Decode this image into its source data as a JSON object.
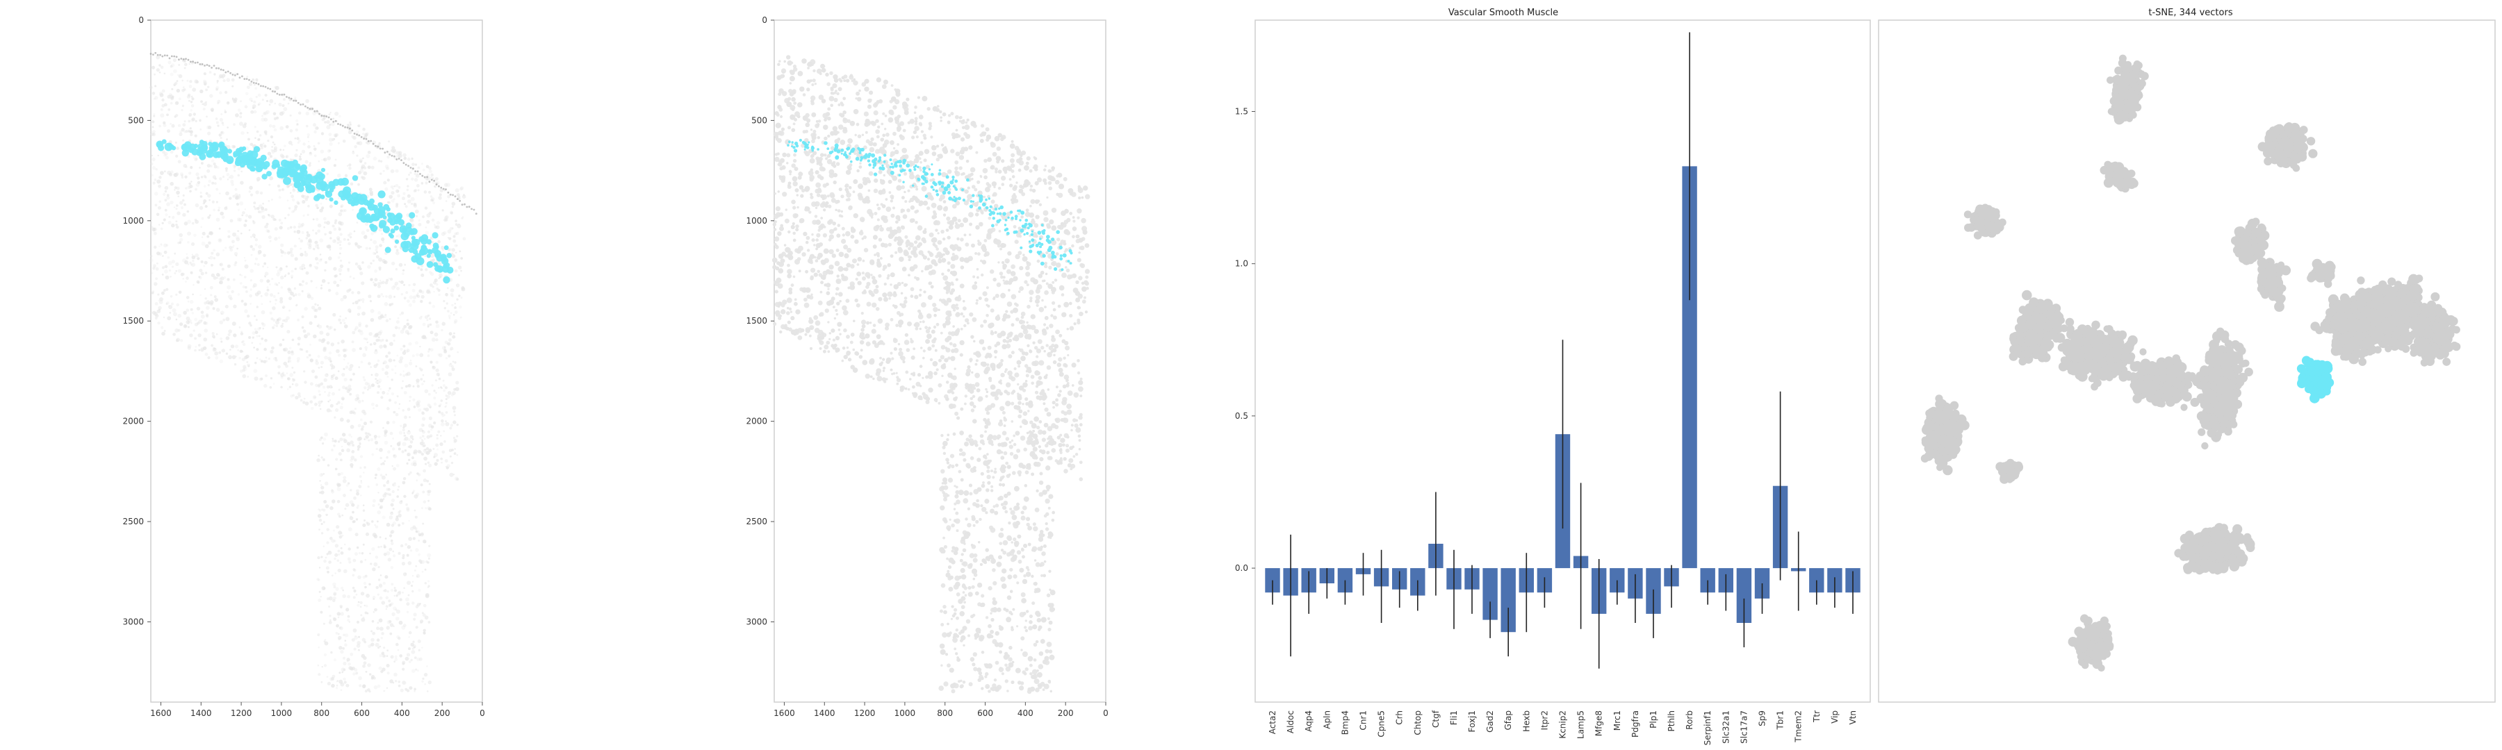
{
  "colors": {
    "highlight": "#6ee7f7",
    "tissue": "#cfcfcf",
    "tissue_light": "#e4e4e4",
    "bar": "#4c72b0",
    "err": "#222222"
  },
  "chart_data": [
    {
      "type": "scatter",
      "panel": "spatial-expression",
      "title": "",
      "x_ticks": [
        1600,
        1400,
        1200,
        1000,
        800,
        600,
        400,
        200,
        0
      ],
      "y_ticks": [
        0,
        500,
        1000,
        1500,
        2000,
        2500,
        3000
      ],
      "xlim": [
        1650,
        0
      ],
      "ylim": [
        3400,
        0
      ]
    },
    {
      "type": "scatter",
      "panel": "spatial-cluster",
      "title": "",
      "x_ticks": [
        1600,
        1400,
        1200,
        1000,
        800,
        600,
        400,
        200,
        0
      ],
      "y_ticks": [
        0,
        500,
        1000,
        1500,
        2000,
        2500,
        3000
      ],
      "xlim": [
        1650,
        0
      ],
      "ylim": [
        3400,
        0
      ]
    },
    {
      "type": "bar",
      "panel": "gene-bars",
      "title": "Vascular Smooth Muscle",
      "categories": [
        "Acta2",
        "Aldoc",
        "Aqp4",
        "Apln",
        "Bmp4",
        "Cnr1",
        "Cpne5",
        "Crh",
        "Chtop",
        "Ctgf",
        "Fli1",
        "Foxj1",
        "Gad2",
        "Gfap",
        "Hexb",
        "Itpr2",
        "Kcnip2",
        "Lamp5",
        "Mfge8",
        "Mrc1",
        "Pdgfra",
        "Plp1",
        "Pthlh",
        "Rorb",
        "Serpinf1",
        "Slc32a1",
        "Slc17a7",
        "Sp9",
        "Tbr1",
        "Tmem2",
        "Ttr",
        "Vip",
        "Vtn"
      ],
      "values": [
        -0.08,
        -0.09,
        -0.08,
        -0.05,
        -0.08,
        -0.02,
        -0.06,
        -0.07,
        -0.09,
        0.08,
        -0.07,
        -0.07,
        -0.17,
        -0.21,
        -0.08,
        -0.08,
        0.44,
        0.04,
        -0.15,
        -0.08,
        -0.1,
        -0.15,
        -0.06,
        1.32,
        -0.08,
        -0.08,
        -0.18,
        -0.1,
        0.27,
        -0.01,
        -0.08,
        -0.08,
        -0.08
      ],
      "errors": [
        0.04,
        0.2,
        0.07,
        0.05,
        0.04,
        0.07,
        0.12,
        0.06,
        0.05,
        0.17,
        0.13,
        0.08,
        0.06,
        0.08,
        0.13,
        0.05,
        0.31,
        0.24,
        0.18,
        0.04,
        0.08,
        0.08,
        0.07,
        0.44,
        0.04,
        0.06,
        0.08,
        0.05,
        0.31,
        0.13,
        0.04,
        0.05,
        0.07
      ],
      "ylim": [
        -0.44,
        1.8
      ],
      "y_ticks": [
        0.0,
        0.5,
        1.0,
        1.5
      ]
    },
    {
      "type": "scatter",
      "panel": "tsne",
      "title": "t-SNE, 344 vectors",
      "grid": false
    }
  ]
}
